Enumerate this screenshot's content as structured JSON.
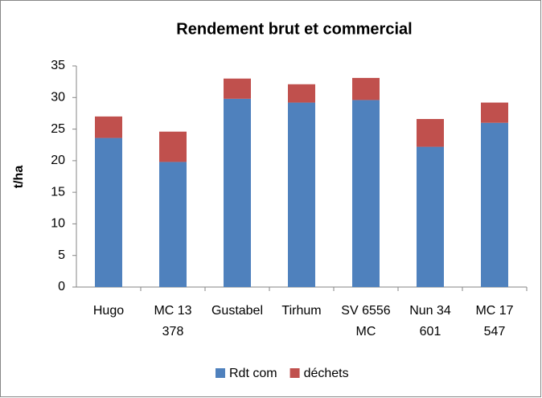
{
  "chart_data": {
    "type": "stacked_bar",
    "title": "Rendement brut et commercial",
    "y_label": "t/ha",
    "categories": [
      [
        "Hugo"
      ],
      [
        "MC 13",
        "378"
      ],
      [
        "Gustabel"
      ],
      [
        "Tirhum"
      ],
      [
        "SV 6556",
        "MC"
      ],
      [
        "Nun 34",
        "601"
      ],
      [
        "MC 17",
        "547"
      ]
    ],
    "series": [
      {
        "name": "Rdt com",
        "color": "#4f81bd",
        "values": [
          23.6,
          19.8,
          29.8,
          29.2,
          29.6,
          22.2,
          26.0
        ]
      },
      {
        "name": "déchets",
        "color": "#c0504d",
        "values": [
          3.4,
          4.8,
          3.2,
          2.9,
          3.5,
          4.4,
          3.2
        ]
      }
    ],
    "ylim": [
      0,
      35
    ],
    "yticks": [
      0,
      5,
      10,
      15,
      20,
      25,
      30,
      35
    ],
    "grid": false,
    "legend": "bottom"
  }
}
